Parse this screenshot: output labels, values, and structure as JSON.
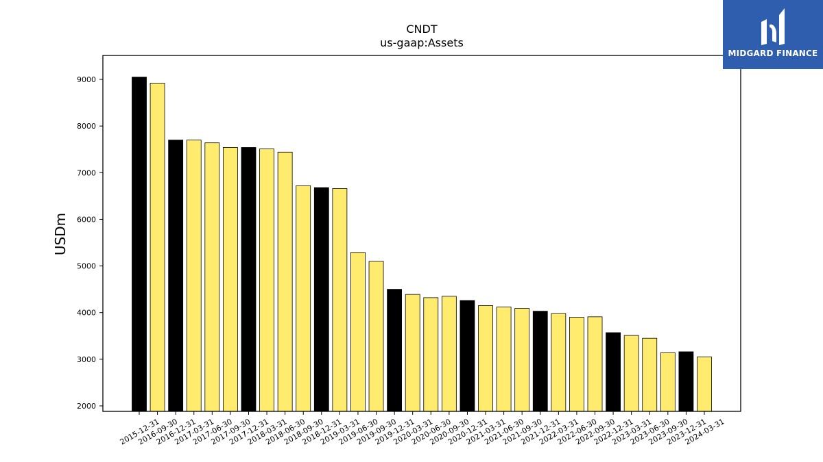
{
  "brand": {
    "name": "MIDGARD FINANCE",
    "bg_color": "#2e5ead"
  },
  "chart_data": {
    "type": "bar",
    "title": "CNDT",
    "subtitle": "us-gaap:Assets",
    "ylabel": "USDm",
    "xlabel": "",
    "ylim": [
      1900,
      9500
    ],
    "yticks": [
      2000,
      3000,
      4000,
      5000,
      6000,
      7000,
      8000,
      9000
    ],
    "grid": false,
    "legend": "none",
    "colors": {
      "annual": "#000000",
      "quarterly": "#ffec6e",
      "edge": "#000000"
    },
    "categories": [
      "2015-12-31",
      "2016-09-30",
      "2016-12-31",
      "2017-03-31",
      "2017-06-30",
      "2017-09-30",
      "2017-12-31",
      "2018-03-31",
      "2018-06-30",
      "2018-09-30",
      "2018-12-31",
      "2019-03-31",
      "2019-06-30",
      "2019-09-30",
      "2019-12-31",
      "2020-03-31",
      "2020-06-30",
      "2020-09-30",
      "2020-12-31",
      "2021-03-31",
      "2021-06-30",
      "2021-09-30",
      "2021-12-31",
      "2022-03-31",
      "2022-06-30",
      "2022-09-30",
      "2022-12-31",
      "2023-03-31",
      "2023-06-30",
      "2023-09-30",
      "2023-12-31",
      "2024-03-31"
    ],
    "values": [
      9050,
      8920,
      7700,
      7700,
      7640,
      7540,
      7540,
      7510,
      7440,
      6720,
      6680,
      6660,
      5290,
      5100,
      4500,
      4390,
      4320,
      4350,
      4260,
      4150,
      4120,
      4090,
      4030,
      3980,
      3900,
      3910,
      3570,
      3510,
      3450,
      3140,
      3160,
      3050
    ],
    "annual": [
      true,
      false,
      true,
      false,
      false,
      false,
      true,
      false,
      false,
      false,
      true,
      false,
      false,
      false,
      true,
      false,
      false,
      false,
      true,
      false,
      false,
      false,
      true,
      false,
      false,
      false,
      true,
      false,
      false,
      false,
      true,
      false
    ]
  }
}
